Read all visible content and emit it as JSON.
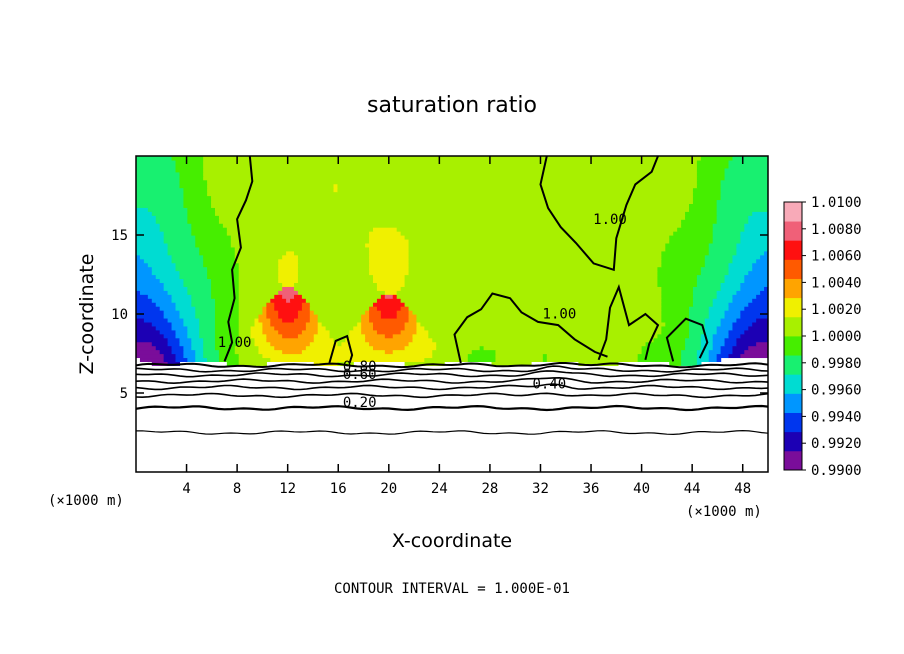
{
  "chart_data": {
    "type": "heatmap",
    "title": "saturation ratio",
    "xlabel": "X-coordinate",
    "ylabel": "Z-coordinate",
    "x_unit_left": "(×1000 m)",
    "x_unit_right": "(×1000 m)",
    "xlim": [
      0,
      50
    ],
    "ylim": [
      0,
      20
    ],
    "xticks": [
      4,
      8,
      12,
      16,
      20,
      24,
      28,
      32,
      36,
      40,
      44,
      48
    ],
    "yticks": [
      5,
      10,
      15
    ],
    "colorbar": {
      "min": 0.99,
      "max": 1.01,
      "labels": [
        "1.0100",
        "1.0080",
        "1.0060",
        "1.0040",
        "1.0020",
        "1.0000",
        "0.9980",
        "0.9960",
        "0.9940",
        "0.9920",
        "0.9900"
      ],
      "colors": [
        "#7a0d9a",
        "#1c00b4",
        "#0036ee",
        "#0096ff",
        "#00dcd2",
        "#18f070",
        "#46ee00",
        "#a8f000",
        "#f0f000",
        "#ffa400",
        "#ff5a00",
        "#ff1010",
        "#f06078",
        "#f8aab8"
      ]
    },
    "contour_labels": [
      {
        "text": "1.00",
        "x": 7.8,
        "y": 7.9
      },
      {
        "text": "1.00",
        "x": 33.5,
        "y": 9.7
      },
      {
        "text": "1.00",
        "x": 37.5,
        "y": 15.7
      },
      {
        "text": "0.80",
        "x": 17.7,
        "y": 6.4
      },
      {
        "text": "0.60",
        "x": 17.7,
        "y": 5.9
      },
      {
        "text": "0.40",
        "x": 32.7,
        "y": 5.3
      },
      {
        "text": "0.20",
        "x": 17.7,
        "y": 4.1
      }
    ],
    "footnote": "CONTOUR INTERVAL = 1.000E-01"
  }
}
